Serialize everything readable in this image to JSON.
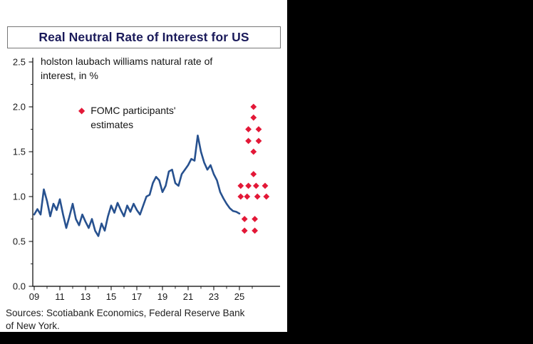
{
  "title": "Real Neutral Rate of Interest for US",
  "annotation": "holston laubach williams natural rate of interest, in %",
  "legend_label": "FOMC participants' estimates",
  "sources": "Sources: Scotiabank Economics, Federal Reserve Bank of New York.",
  "colors": {
    "title_navy": "#1a1a5a",
    "line_blue": "#27518f",
    "accent_red": "#e31837",
    "axis_black": "#000000",
    "panel_white": "#ffffff",
    "background_black": "#000000"
  },
  "chart_data": {
    "type": "line",
    "title": "Real Neutral Rate of Interest for US",
    "subtitle": "holston laubach williams natural rate of interest, in %",
    "ylabel": "%",
    "ylim": [
      0,
      2.5
    ],
    "yticks": [
      0.0,
      0.5,
      1.0,
      1.5,
      2.0,
      2.5
    ],
    "xtick_labels": [
      "09",
      "11",
      "13",
      "15",
      "17",
      "19",
      "21",
      "23",
      "25"
    ],
    "xtick_years": [
      2009,
      2011,
      2013,
      2015,
      2017,
      2019,
      2021,
      2023,
      2025
    ],
    "xlim": [
      2009,
      2028.2
    ],
    "grid": false,
    "series": [
      {
        "name": "holston laubach williams natural rate of interest, in %",
        "type": "line",
        "x": [
          2009,
          2009.25,
          2009.5,
          2009.75,
          2010,
          2010.25,
          2010.5,
          2010.75,
          2011,
          2011.25,
          2011.5,
          2011.75,
          2012,
          2012.25,
          2012.5,
          2012.75,
          2013,
          2013.25,
          2013.5,
          2013.75,
          2014,
          2014.25,
          2014.5,
          2014.75,
          2015,
          2015.25,
          2015.5,
          2015.75,
          2016,
          2016.25,
          2016.5,
          2016.75,
          2017,
          2017.25,
          2017.5,
          2017.75,
          2018,
          2018.25,
          2018.5,
          2018.75,
          2019,
          2019.25,
          2019.5,
          2019.75,
          2020,
          2020.25,
          2020.5,
          2020.75,
          2021,
          2021.25,
          2021.5,
          2021.75,
          2022,
          2022.25,
          2022.5,
          2022.75,
          2023,
          2023.25,
          2023.5,
          2023.75,
          2024,
          2024.25,
          2024.5,
          2024.75,
          2025
        ],
        "y": [
          0.8,
          0.86,
          0.8,
          1.08,
          0.95,
          0.78,
          0.92,
          0.85,
          0.97,
          0.8,
          0.65,
          0.78,
          0.92,
          0.75,
          0.68,
          0.8,
          0.72,
          0.65,
          0.75,
          0.62,
          0.56,
          0.7,
          0.62,
          0.78,
          0.9,
          0.82,
          0.93,
          0.85,
          0.78,
          0.9,
          0.83,
          0.92,
          0.85,
          0.8,
          0.9,
          1.0,
          1.02,
          1.15,
          1.22,
          1.18,
          1.05,
          1.12,
          1.28,
          1.3,
          1.15,
          1.12,
          1.25,
          1.3,
          1.35,
          1.42,
          1.4,
          1.68,
          1.5,
          1.38,
          1.3,
          1.35,
          1.25,
          1.18,
          1.05,
          0.98,
          0.92,
          0.87,
          0.84,
          0.83,
          0.81
        ]
      },
      {
        "name": "FOMC participants' estimates",
        "type": "scatter",
        "points": [
          [
            2026.1,
            2.0
          ],
          [
            2026.1,
            1.88
          ],
          [
            2025.7,
            1.75
          ],
          [
            2026.5,
            1.75
          ],
          [
            2025.7,
            1.62
          ],
          [
            2026.5,
            1.62
          ],
          [
            2026.1,
            1.5
          ],
          [
            2026.1,
            1.25
          ],
          [
            2025.1,
            1.12
          ],
          [
            2025.7,
            1.12
          ],
          [
            2026.3,
            1.12
          ],
          [
            2027.0,
            1.12
          ],
          [
            2025.1,
            1.0
          ],
          [
            2025.6,
            1.0
          ],
          [
            2026.4,
            1.0
          ],
          [
            2027.1,
            1.0
          ],
          [
            2025.4,
            0.75
          ],
          [
            2026.2,
            0.75
          ],
          [
            2025.4,
            0.62
          ],
          [
            2026.2,
            0.62
          ]
        ]
      }
    ]
  }
}
